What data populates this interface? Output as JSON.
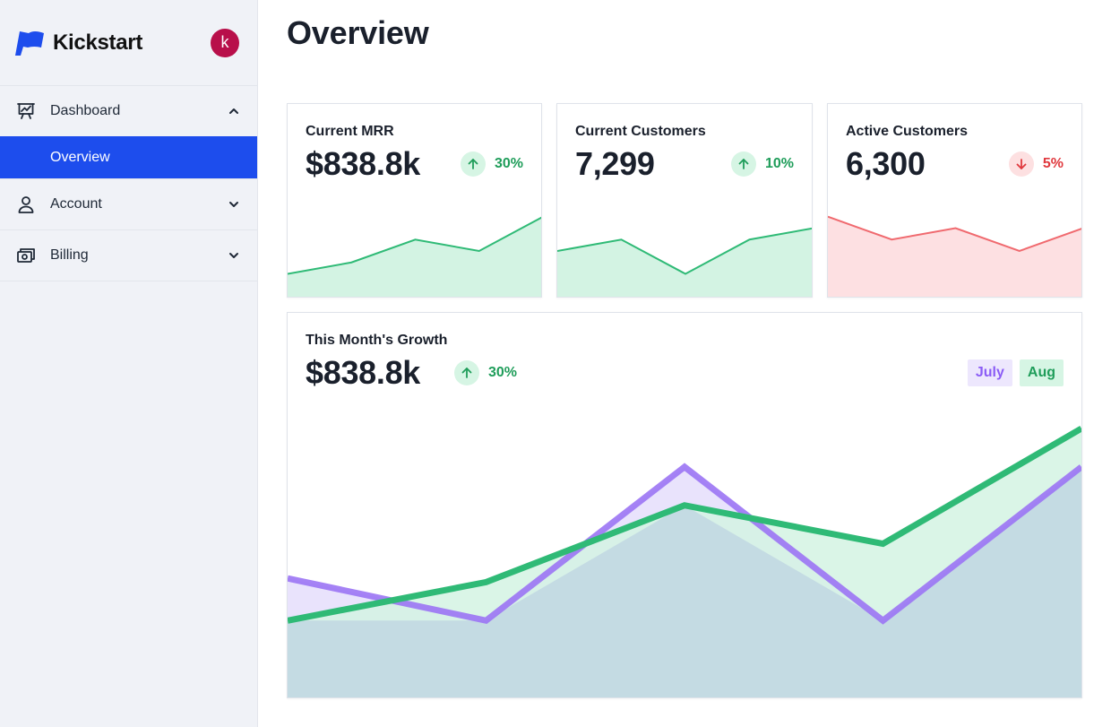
{
  "brand": {
    "name": "Kickstart",
    "avatar_initial": "k",
    "logo_icon": "flag-icon",
    "accent": "#1d4ded"
  },
  "sidebar": {
    "items": [
      {
        "label": "Dashboard",
        "icon": "presentation-chart-icon",
        "expanded": true,
        "children": [
          {
            "label": "Overview",
            "active": true
          }
        ]
      },
      {
        "label": "Account",
        "icon": "user-icon",
        "expanded": false
      },
      {
        "label": "Billing",
        "icon": "cash-icon",
        "expanded": false
      }
    ]
  },
  "page": {
    "title": "Overview"
  },
  "stats": [
    {
      "title": "Current MRR",
      "value": "$838.8k",
      "delta": "30%",
      "direction": "up",
      "series": [
        2,
        3,
        5,
        4,
        7
      ]
    },
    {
      "title": "Current Customers",
      "value": "7,299",
      "delta": "10%",
      "direction": "up",
      "series": [
        4,
        5,
        2,
        5,
        6
      ]
    },
    {
      "title": "Active Customers",
      "value": "6,300",
      "delta": "5%",
      "direction": "down",
      "series": [
        7,
        5,
        6,
        4,
        6
      ]
    }
  ],
  "growth": {
    "title": "This Month's Growth",
    "value": "$838.8k",
    "delta": "30%",
    "direction": "up",
    "legend": [
      {
        "label": "July",
        "color": "#8b5cf6"
      },
      {
        "label": "Aug",
        "color": "#2fba76"
      }
    ]
  },
  "chart_data": {
    "type": "area",
    "x": [
      1,
      2,
      3,
      4,
      5
    ],
    "series": [
      {
        "name": "July",
        "values": [
          3.1,
          2.0,
          6.0,
          2.0,
          6.0
        ]
      },
      {
        "name": "Aug",
        "values": [
          2.0,
          3.0,
          5.0,
          4.0,
          7.0
        ]
      }
    ],
    "ylim": [
      0,
      7.7
    ],
    "grid": false
  },
  "colors": {
    "up": "#2fba76",
    "up_fill": "#d3f3e3",
    "down": "#f06a6f",
    "down_fill": "#fde0e2",
    "july": "#9b74f4",
    "july_fill": "#e9e3fc",
    "overlap_fill": "#c4dbe3"
  }
}
